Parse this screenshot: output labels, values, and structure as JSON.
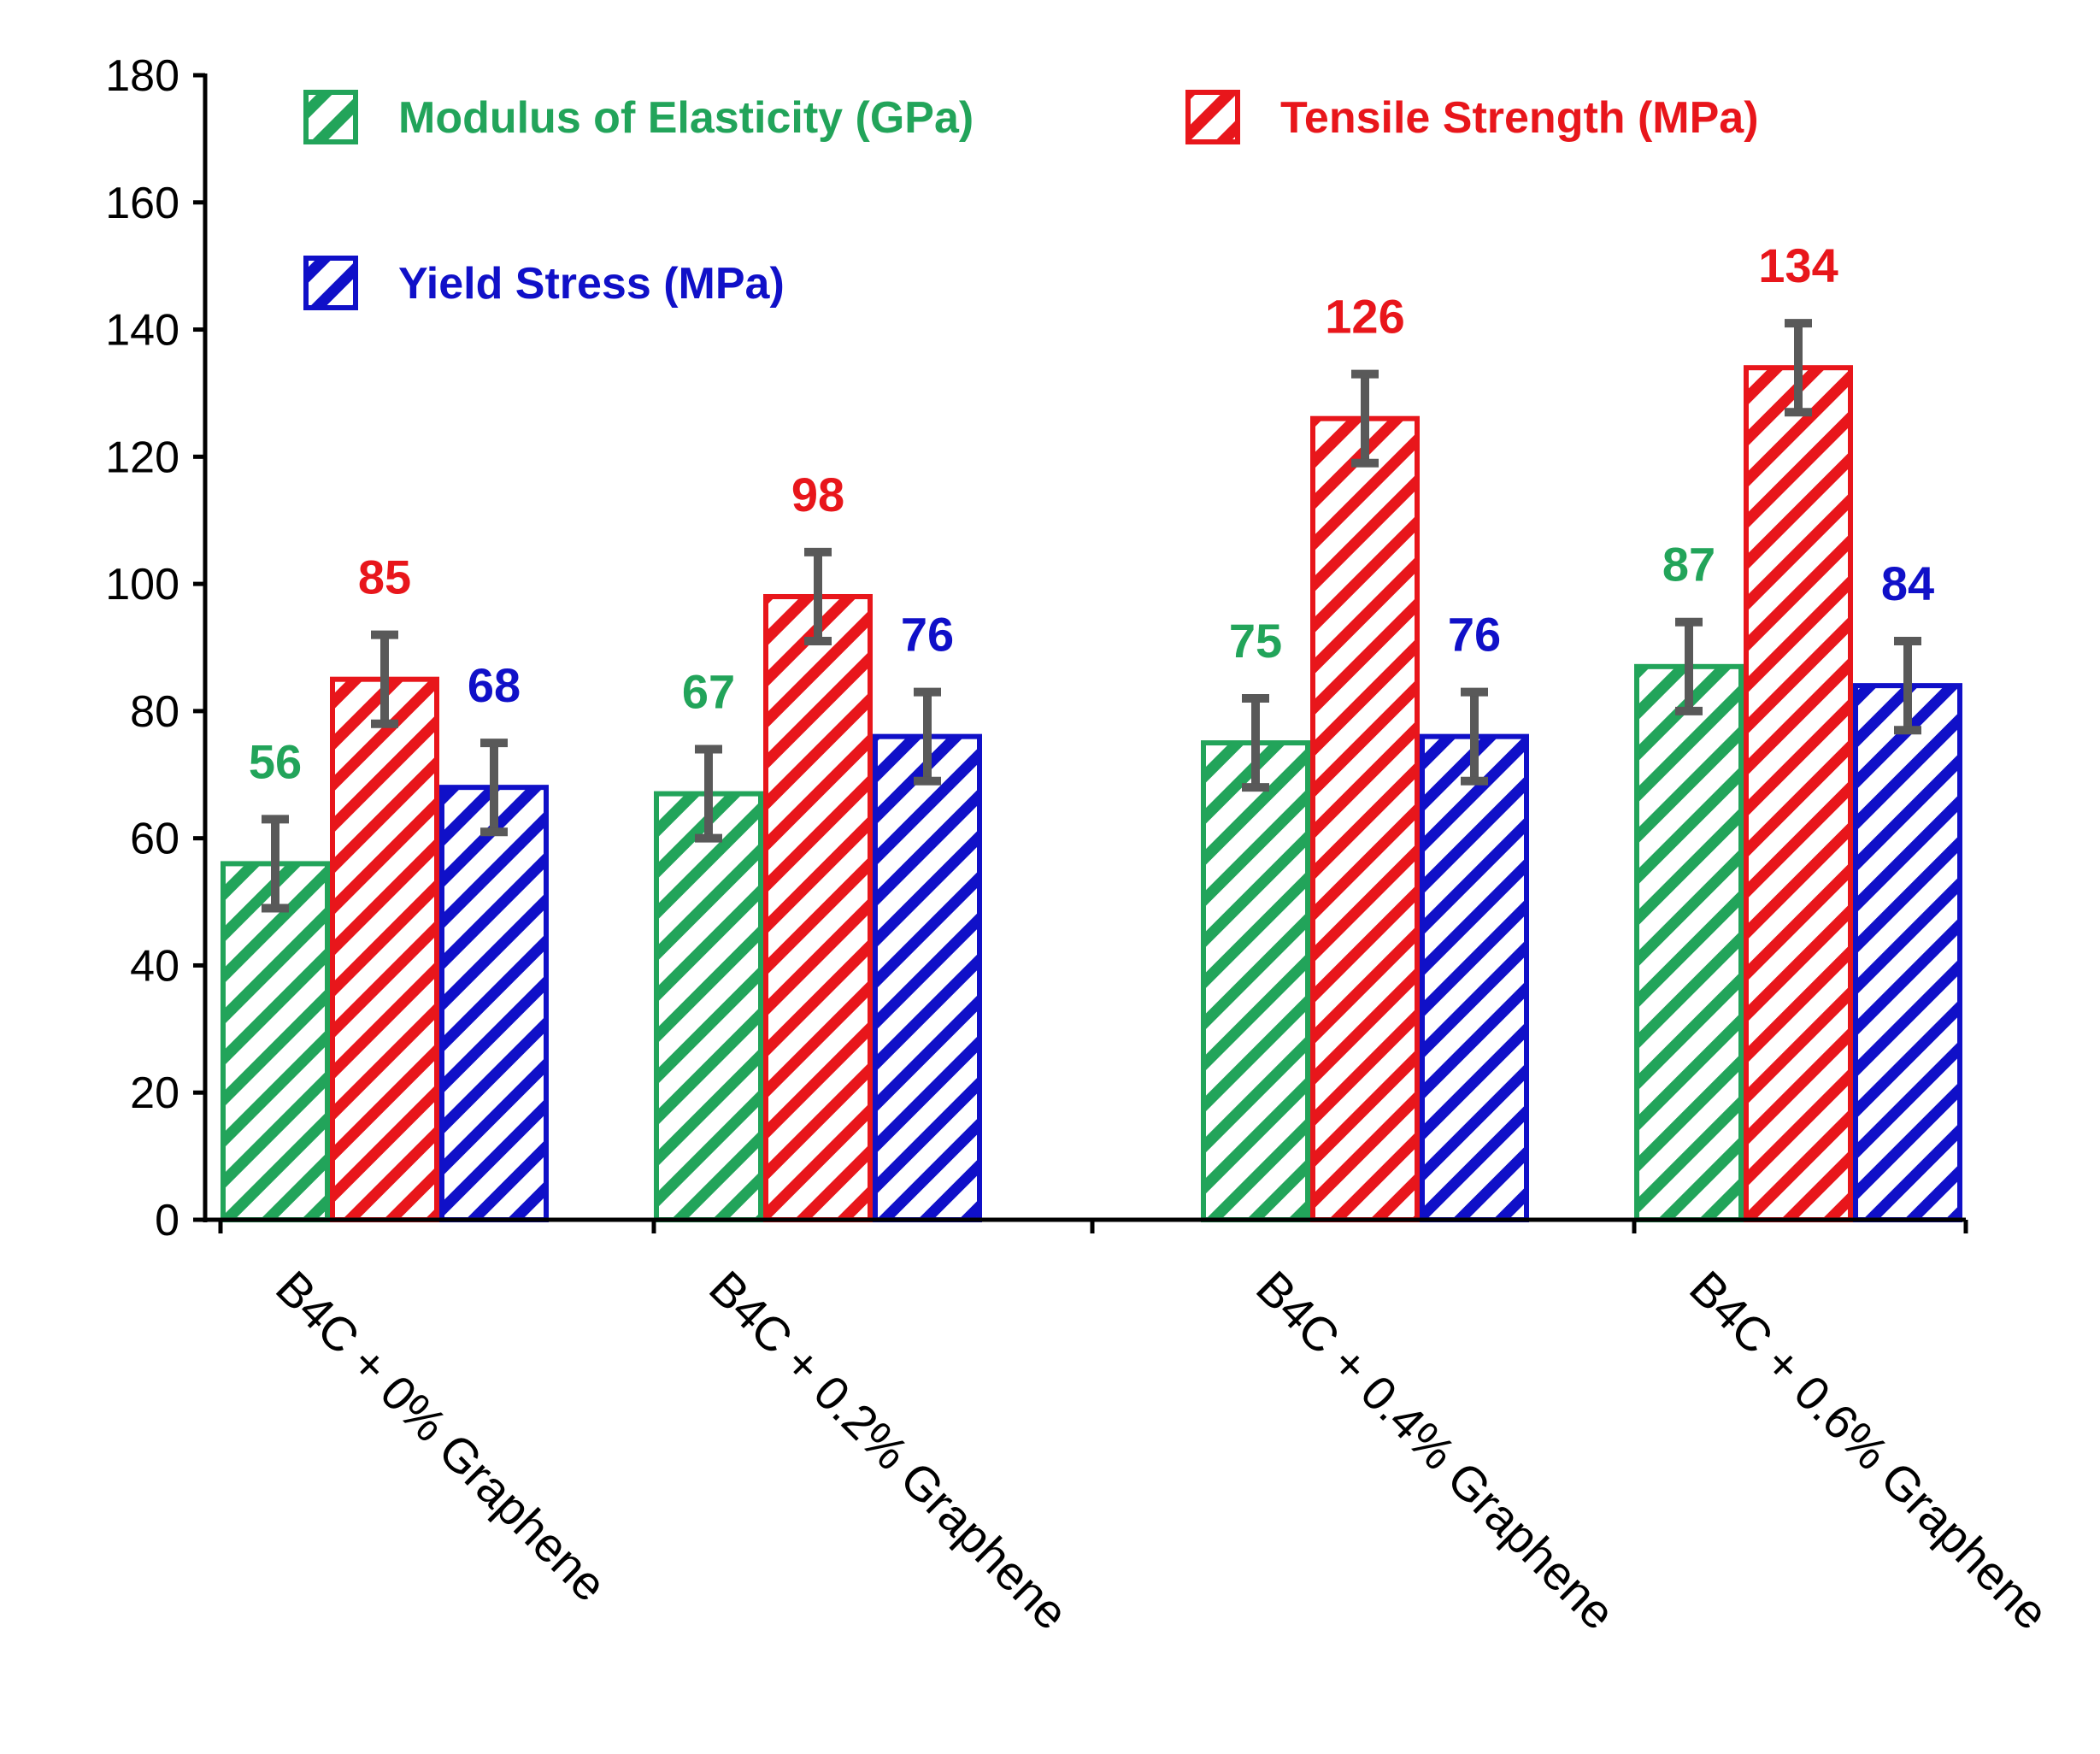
{
  "chart_data": {
    "type": "bar",
    "title": "",
    "xlabel": "",
    "ylabel": "",
    "ylim": [
      0,
      180
    ],
    "yticks": [
      0,
      20,
      40,
      60,
      80,
      100,
      120,
      140,
      160,
      180
    ],
    "grid": false,
    "categories": [
      "B4C + 0% Graphene",
      "B4C + 0.2% Graphene",
      "B4C + 0.4% Graphene",
      "B4C + 0.6% Graphene"
    ],
    "series": [
      {
        "name": "Modulus of Elasticity (GPa)",
        "color": "#22a45a",
        "values": [
          56,
          67,
          75,
          87
        ],
        "labels": [
          "56",
          "67",
          "75",
          "87"
        ],
        "error": [
          7,
          7,
          7,
          7
        ]
      },
      {
        "name": "Tensile Strength (MPa)",
        "color": "#e8161b",
        "values": [
          85,
          98,
          126,
          134
        ],
        "labels": [
          "85",
          "98",
          "126",
          "134"
        ],
        "error": [
          7,
          7,
          7,
          7
        ]
      },
      {
        "name": "Yield Stress (MPa)",
        "color": "#1010c8",
        "values": [
          68,
          76,
          76,
          84
        ],
        "labels": [
          "68",
          "76",
          "76",
          "84"
        ],
        "error": [
          7,
          7,
          7,
          7
        ]
      }
    ],
    "legend_position": "top-left",
    "error_bar_color": "#595959",
    "fill_pattern": "diagonal-hatch"
  }
}
